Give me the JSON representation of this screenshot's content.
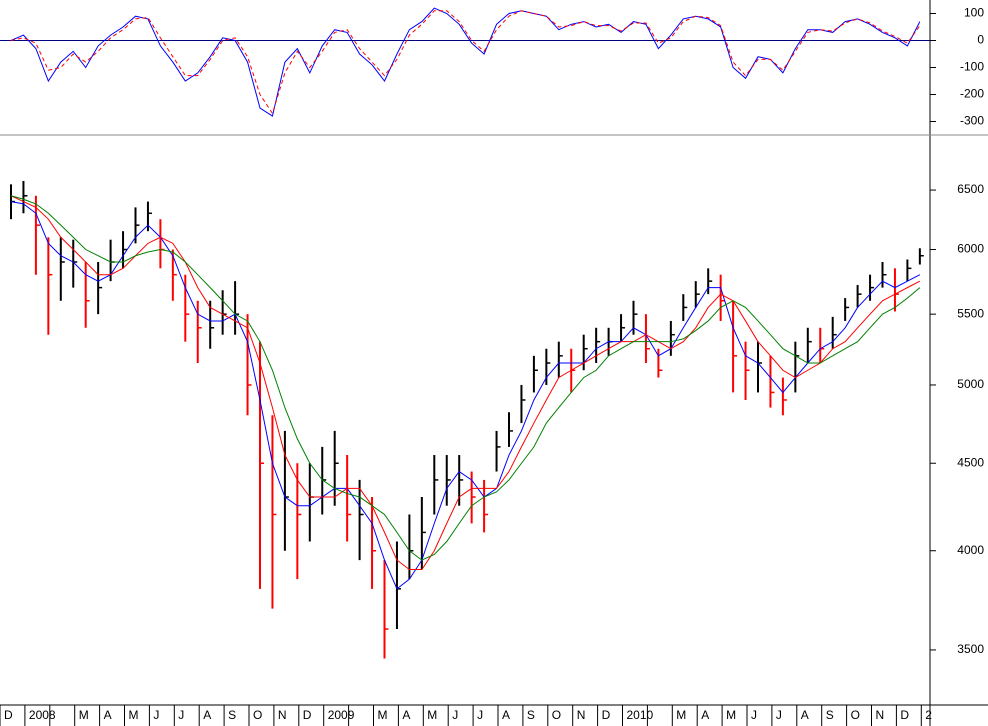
{
  "chart_data": [
    {
      "type": "line",
      "ylim": [
        -350,
        150
      ],
      "yticks": [
        100,
        0,
        -100,
        -200,
        -300
      ],
      "zero_line": true,
      "series": [
        {
          "color": "#0000ff",
          "dash": false,
          "values": [
            0,
            20,
            -30,
            -150,
            -80,
            -40,
            -100,
            -20,
            20,
            50,
            90,
            80,
            -20,
            -80,
            -150,
            -120,
            -60,
            10,
            0,
            -80,
            -250,
            -280,
            -80,
            -30,
            -120,
            -20,
            40,
            30,
            -50,
            -90,
            -150,
            -50,
            40,
            70,
            120,
            100,
            60,
            -10,
            -50,
            60,
            100,
            110,
            100,
            90,
            40,
            60,
            70,
            50,
            60,
            30,
            70,
            60,
            -30,
            20,
            80,
            90,
            80,
            50,
            -100,
            -140,
            -60,
            -70,
            -120,
            -30,
            40,
            40,
            30,
            70,
            80,
            60,
            30,
            10,
            -20,
            70
          ]
        },
        {
          "color": "#ff0000",
          "dash": true,
          "values": [
            0,
            10,
            -10,
            -110,
            -100,
            -50,
            -80,
            -40,
            10,
            40,
            80,
            85,
            10,
            -60,
            -130,
            -130,
            -70,
            0,
            10,
            -60,
            -200,
            -270,
            -120,
            -40,
            -100,
            -40,
            30,
            40,
            -30,
            -80,
            -130,
            -70,
            20,
            60,
            110,
            110,
            70,
            0,
            -40,
            40,
            90,
            110,
            100,
            90,
            50,
            55,
            70,
            55,
            55,
            35,
            65,
            65,
            -10,
            10,
            70,
            90,
            85,
            55,
            -80,
            -130,
            -70,
            -70,
            -110,
            -40,
            30,
            40,
            35,
            65,
            80,
            65,
            35,
            15,
            -10,
            55
          ]
        }
      ]
    },
    {
      "type": "ohlc",
      "log_scale": true,
      "ylim": [
        3250,
        7000
      ],
      "yticks": [
        3500,
        4000,
        4500,
        5000,
        5500,
        6000,
        6500
      ],
      "up_color": "#000000",
      "down_color": "#ff0000",
      "x_labels": [
        "D",
        "2008",
        null,
        "M",
        "A",
        "M",
        "J",
        "J",
        "A",
        "S",
        "O",
        "N",
        "D",
        "2009",
        null,
        "M",
        "A",
        "M",
        "J",
        "J",
        "A",
        "S",
        "O",
        "N",
        "D",
        "2010",
        null,
        "M",
        "A",
        "M",
        "J",
        "J",
        "A",
        "S",
        "O",
        "N",
        "D",
        "2"
      ],
      "high": [
        6550,
        6580,
        6450,
        6100,
        6100,
        6080,
        5900,
        5900,
        6080,
        6150,
        6350,
        6400,
        6250,
        6000,
        5800,
        5600,
        5600,
        5680,
        5750,
        5500,
        5300,
        4800,
        4700,
        4500,
        4500,
        4600,
        4700,
        4550,
        4400,
        4300,
        3950,
        4050,
        4200,
        4300,
        4550,
        4550,
        4550,
        4450,
        4400,
        4700,
        4820,
        5000,
        5200,
        5250,
        5300,
        5250,
        5350,
        5400,
        5400,
        5500,
        5600,
        5500,
        5250,
        5450,
        5650,
        5750,
        5850,
        5800,
        5600,
        5300,
        5300,
        5200,
        5050,
        5300,
        5400,
        5400,
        5480,
        5620,
        5720,
        5800,
        5900,
        5850,
        5920,
        6010
      ],
      "low": [
        6250,
        6300,
        5800,
        5350,
        5600,
        5700,
        5400,
        5500,
        5750,
        5850,
        6050,
        6150,
        5850,
        5600,
        5300,
        5150,
        5250,
        5350,
        5350,
        4800,
        3800,
        3700,
        4000,
        3850,
        4050,
        4200,
        4250,
        4050,
        3950,
        3800,
        3460,
        3600,
        3850,
        3900,
        4200,
        4250,
        4250,
        4150,
        4100,
        4450,
        4600,
        4750,
        4950,
        5000,
        5050,
        4950,
        5100,
        5150,
        5200,
        5300,
        5350,
        5150,
        5050,
        5200,
        5450,
        5550,
        5650,
        5450,
        4950,
        4900,
        4950,
        4850,
        4800,
        4950,
        5150,
        5150,
        5250,
        5450,
        5550,
        5600,
        5700,
        5520,
        5750,
        5880
      ],
      "close": [
        6400,
        6450,
        6200,
        5800,
        5900,
        5900,
        5600,
        5700,
        5900,
        6000,
        6200,
        6300,
        6000,
        5800,
        5500,
        5400,
        5400,
        5500,
        5500,
        5000,
        4500,
        4200,
        4300,
        4200,
        4300,
        4400,
        4500,
        4200,
        4200,
        4000,
        3600,
        3800,
        4000,
        4100,
        4400,
        4400,
        4400,
        4300,
        4200,
        4600,
        4700,
        4900,
        5100,
        5150,
        5200,
        5100,
        5250,
        5300,
        5300,
        5400,
        5500,
        5250,
        5100,
        5350,
        5550,
        5650,
        5750,
        5600,
        5200,
        5100,
        5150,
        4950,
        4900,
        5200,
        5300,
        5250,
        5350,
        5550,
        5650,
        5700,
        5800,
        5650,
        5850,
        5950
      ],
      "series": [
        {
          "color": "#0000ff",
          "values": [
            6400,
            6380,
            6300,
            6050,
            5950,
            5900,
            5800,
            5750,
            5800,
            5950,
            6100,
            6200,
            6100,
            5950,
            5700,
            5500,
            5450,
            5450,
            5500,
            5300,
            4900,
            4500,
            4300,
            4250,
            4250,
            4300,
            4350,
            4350,
            4250,
            4150,
            3950,
            3800,
            3850,
            3950,
            4150,
            4350,
            4450,
            4400,
            4300,
            4350,
            4550,
            4700,
            4900,
            5050,
            5150,
            5150,
            5150,
            5250,
            5300,
            5300,
            5400,
            5350,
            5200,
            5250,
            5400,
            5550,
            5700,
            5700,
            5400,
            5200,
            5150,
            5050,
            4950,
            5050,
            5150,
            5250,
            5300,
            5400,
            5550,
            5650,
            5750,
            5700,
            5750,
            5800
          ]
        },
        {
          "color": "#ff0000",
          "values": [
            6450,
            6400,
            6350,
            6250,
            6100,
            6000,
            5900,
            5800,
            5800,
            5850,
            5950,
            6050,
            6100,
            6050,
            5900,
            5700,
            5550,
            5500,
            5450,
            5400,
            5150,
            4850,
            4550,
            4400,
            4300,
            4300,
            4300,
            4350,
            4350,
            4250,
            4100,
            3950,
            3900,
            3900,
            4000,
            4150,
            4300,
            4350,
            4350,
            4350,
            4450,
            4600,
            4750,
            4900,
            5050,
            5100,
            5150,
            5200,
            5250,
            5300,
            5300,
            5350,
            5300,
            5250,
            5300,
            5400,
            5550,
            5650,
            5600,
            5450,
            5300,
            5200,
            5100,
            5050,
            5100,
            5150,
            5250,
            5300,
            5400,
            5500,
            5600,
            5650,
            5700,
            5750
          ]
        },
        {
          "color": "#008000",
          "values": [
            6450,
            6420,
            6380,
            6300,
            6200,
            6100,
            6000,
            5950,
            5900,
            5900,
            5950,
            5980,
            6000,
            5980,
            5900,
            5800,
            5700,
            5600,
            5500,
            5450,
            5300,
            5100,
            4850,
            4650,
            4500,
            4400,
            4350,
            4320,
            4300,
            4250,
            4200,
            4100,
            4000,
            3950,
            3980,
            4050,
            4150,
            4250,
            4300,
            4330,
            4400,
            4500,
            4600,
            4750,
            4850,
            4950,
            5050,
            5100,
            5200,
            5250,
            5300,
            5300,
            5300,
            5300,
            5320,
            5380,
            5450,
            5550,
            5600,
            5550,
            5450,
            5350,
            5250,
            5200,
            5150,
            5150,
            5200,
            5250,
            5300,
            5400,
            5500,
            5550,
            5620,
            5700
          ]
        }
      ]
    }
  ]
}
